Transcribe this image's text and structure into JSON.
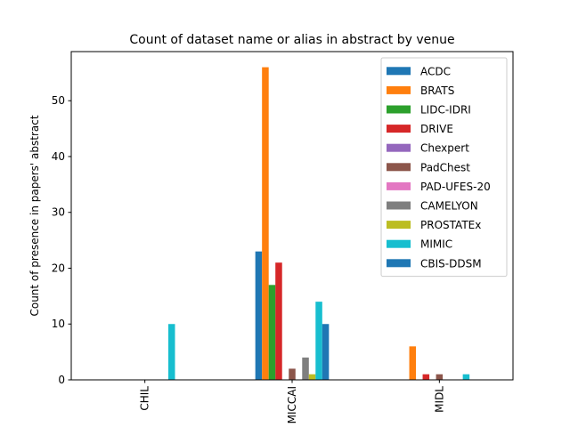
{
  "chart_data": {
    "type": "bar",
    "title": "Count of dataset name or alias in abstract by venue",
    "xlabel": "",
    "ylabel": "Count of presence in papers' abstract",
    "categories": [
      "CHIL",
      "MICCAI",
      "MIDL"
    ],
    "ylim": [
      0,
      58.8
    ],
    "yticks": [
      0,
      10,
      20,
      30,
      40,
      50
    ],
    "grid": false,
    "legend_position": "top-right",
    "series": [
      {
        "name": "ACDC",
        "color": "#1f77b4",
        "values": [
          0,
          23,
          0
        ]
      },
      {
        "name": "BRATS",
        "color": "#ff7f0e",
        "values": [
          0,
          56,
          6
        ]
      },
      {
        "name": "LIDC-IDRI",
        "color": "#2ca02c",
        "values": [
          0,
          17,
          0
        ]
      },
      {
        "name": "DRIVE",
        "color": "#d62728",
        "values": [
          0,
          21,
          1
        ]
      },
      {
        "name": "Chexpert",
        "color": "#9467bd",
        "values": [
          0,
          0,
          0
        ]
      },
      {
        "name": "PadChest",
        "color": "#8c564b",
        "values": [
          0,
          2,
          1
        ]
      },
      {
        "name": "PAD-UFES-20",
        "color": "#e377c2",
        "values": [
          0,
          0,
          0
        ]
      },
      {
        "name": "CAMELYON",
        "color": "#7f7f7f",
        "values": [
          0,
          4,
          0
        ]
      },
      {
        "name": "PROSTATEx",
        "color": "#bcbd22",
        "values": [
          0,
          1,
          0
        ]
      },
      {
        "name": "MIMIC",
        "color": "#17becf",
        "values": [
          10,
          14,
          1
        ]
      },
      {
        "name": "CBIS-DDSM",
        "color": "#1f77b4",
        "values": [
          0,
          10,
          0
        ]
      }
    ]
  }
}
